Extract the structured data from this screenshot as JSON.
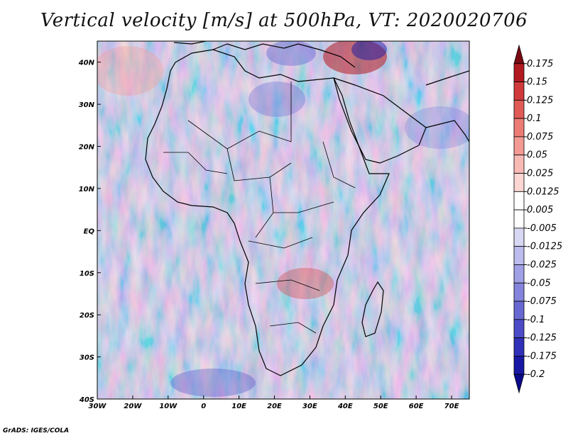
{
  "title": "Vertical velocity [m/s] at 500hPa, VT: 2020020706",
  "footer": "GrADS: IGES/COLA",
  "map": {
    "lon_range": [
      -30,
      75
    ],
    "lat_range": [
      -40,
      45
    ],
    "x_ticks": [
      {
        "value": -30,
        "label": "30W"
      },
      {
        "value": -20,
        "label": "20W"
      },
      {
        "value": -10,
        "label": "10W"
      },
      {
        "value": 0,
        "label": "0"
      },
      {
        "value": 10,
        "label": "10E"
      },
      {
        "value": 20,
        "label": "20E"
      },
      {
        "value": 30,
        "label": "30E"
      },
      {
        "value": 40,
        "label": "40E"
      },
      {
        "value": 50,
        "label": "50E"
      },
      {
        "value": 60,
        "label": "60E"
      },
      {
        "value": 70,
        "label": "70E"
      }
    ],
    "y_ticks": [
      {
        "value": 40,
        "label": "40N"
      },
      {
        "value": 30,
        "label": "30N"
      },
      {
        "value": 20,
        "label": "20N"
      },
      {
        "value": 10,
        "label": "10N"
      },
      {
        "value": 0,
        "label": "EQ"
      },
      {
        "value": -10,
        "label": "10S"
      },
      {
        "value": -20,
        "label": "20S"
      },
      {
        "value": -30,
        "label": "30S"
      },
      {
        "value": -40,
        "label": "40S"
      }
    ]
  },
  "colorbar": {
    "labels": [
      "0.175",
      "0.15",
      "0.125",
      "0.1",
      "0.075",
      "0.05",
      "0.025",
      "0.0125",
      "0.005",
      "-0.005",
      "-0.0125",
      "-0.025",
      "-0.05",
      "-0.075",
      "-0.1",
      "-0.125",
      "-0.175",
      "-0.2"
    ],
    "colors": [
      "#7a0a12",
      "#b21a22",
      "#d03a3a",
      "#e05a56",
      "#ec7c76",
      "#f49a94",
      "#f8bab5",
      "#fbd6d3",
      "#ffffff",
      "#ffffff",
      "#d8d8f4",
      "#bcbcee",
      "#a0a0e6",
      "#8484dc",
      "#6868d2",
      "#4c4cc8",
      "#3030b8",
      "#1818a4",
      "#0a0a8a"
    ]
  }
}
